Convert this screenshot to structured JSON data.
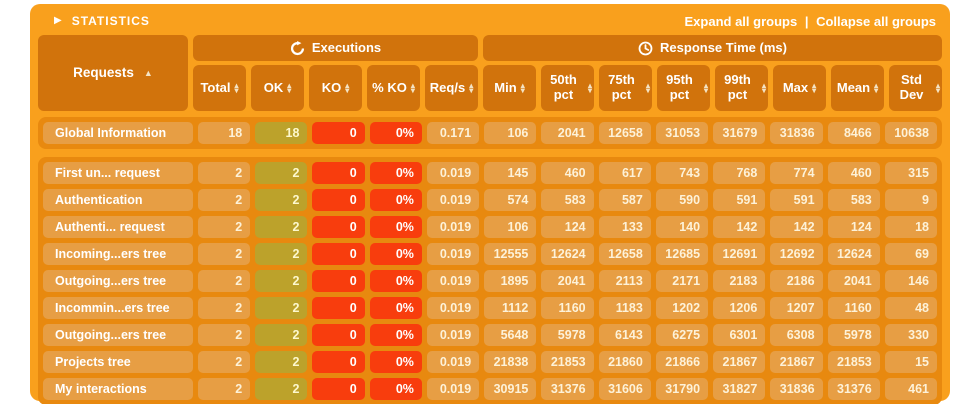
{
  "title": "STATISTICS",
  "titlebar": {
    "expand_link": "Expand all groups",
    "separator": "|",
    "collapse_link": "Collapse all groups"
  },
  "table": {
    "requests_header": "Requests",
    "group_headers": {
      "executions": "Executions",
      "response_time": "Response Time (ms)"
    },
    "columns": [
      {
        "label": "Total"
      },
      {
        "label": "OK"
      },
      {
        "label": "KO"
      },
      {
        "label": "% KO"
      },
      {
        "label": "Req/s"
      },
      {
        "label": "Min"
      },
      {
        "label": "50th pct"
      },
      {
        "label": "75th pct"
      },
      {
        "label": "95th pct"
      },
      {
        "label": "99th pct"
      },
      {
        "label": "Max"
      },
      {
        "label": "Mean"
      },
      {
        "label": "Std Dev"
      }
    ],
    "global_row": {
      "name": "Global Information",
      "values": [
        "18",
        "18",
        "0",
        "0%",
        "0.171",
        "106",
        "2041",
        "12658",
        "31053",
        "31679",
        "31836",
        "8466",
        "10638"
      ]
    },
    "rows": [
      {
        "name": "First un... request",
        "values": [
          "2",
          "2",
          "0",
          "0%",
          "0.019",
          "145",
          "460",
          "617",
          "743",
          "768",
          "774",
          "460",
          "315"
        ]
      },
      {
        "name": "Authentication",
        "values": [
          "2",
          "2",
          "0",
          "0%",
          "0.019",
          "574",
          "583",
          "587",
          "590",
          "591",
          "591",
          "583",
          "9"
        ]
      },
      {
        "name": "Authenti... request",
        "values": [
          "2",
          "2",
          "0",
          "0%",
          "0.019",
          "106",
          "124",
          "133",
          "140",
          "142",
          "142",
          "124",
          "18"
        ]
      },
      {
        "name": "Incoming...ers tree",
        "values": [
          "2",
          "2",
          "0",
          "0%",
          "0.019",
          "12555",
          "12624",
          "12658",
          "12685",
          "12691",
          "12692",
          "12624",
          "69"
        ]
      },
      {
        "name": "Outgoing...ers tree",
        "values": [
          "2",
          "2",
          "0",
          "0%",
          "0.019",
          "1895",
          "2041",
          "2113",
          "2171",
          "2183",
          "2186",
          "2041",
          "146"
        ]
      },
      {
        "name": "Incommin...ers tree",
        "values": [
          "2",
          "2",
          "0",
          "0%",
          "0.019",
          "1112",
          "1160",
          "1183",
          "1202",
          "1206",
          "1207",
          "1160",
          "48"
        ]
      },
      {
        "name": "Outgoing...ers tree",
        "values": [
          "2",
          "2",
          "0",
          "0%",
          "0.019",
          "5648",
          "5978",
          "6143",
          "6275",
          "6301",
          "6308",
          "5978",
          "330"
        ]
      },
      {
        "name": "Projects tree",
        "values": [
          "2",
          "2",
          "0",
          "0%",
          "0.019",
          "21838",
          "21853",
          "21860",
          "21866",
          "21867",
          "21867",
          "21853",
          "15"
        ]
      },
      {
        "name": "My interactions",
        "values": [
          "2",
          "2",
          "0",
          "0%",
          "0.019",
          "30915",
          "31376",
          "31606",
          "31790",
          "31827",
          "31836",
          "31376",
          "461"
        ]
      }
    ],
    "cell_kinds": [
      "num",
      "ok",
      "ko",
      "ko",
      "num",
      "num",
      "num",
      "num",
      "num",
      "num",
      "num",
      "num",
      "num"
    ]
  },
  "colors": {
    "panel": "#f9a01d",
    "section": "#e8890f",
    "header_cell": "#d1730c",
    "cell": "#e79e44",
    "ok_cell": "#bca22b",
    "ko_cell": "#f83d0d"
  }
}
